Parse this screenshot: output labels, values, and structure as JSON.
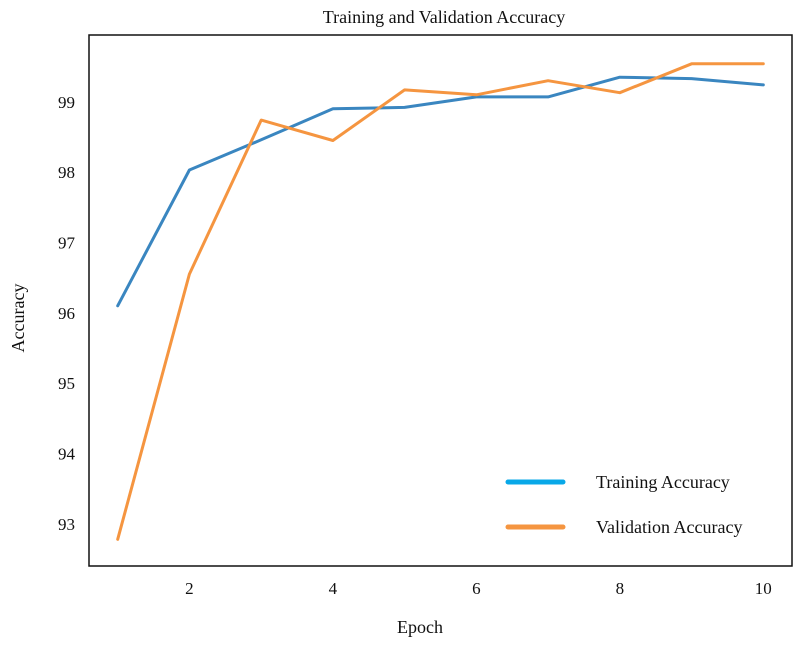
{
  "chart_data": {
    "type": "line",
    "title": "Training and Validation Accuracy",
    "xlabel": "Epoch",
    "ylabel": "Accuracy",
    "xlim": [
      0.6,
      10.4
    ],
    "ylim": [
      92.4,
      99.95
    ],
    "xticks": [
      2,
      4,
      6,
      8,
      10
    ],
    "yticks": [
      93,
      94,
      95,
      96,
      97,
      98,
      99
    ],
    "grid": false,
    "legend_position": "bottom-right",
    "series": [
      {
        "name": "Training Accuracy",
        "color": "#3a86c0",
        "legend_color": "#08a8e8",
        "x": [
          1,
          2,
          3,
          4,
          5,
          6,
          7,
          8,
          9,
          10
        ],
        "y": [
          96.1,
          98.03,
          98.46,
          98.9,
          98.92,
          99.07,
          99.07,
          99.35,
          99.33,
          99.24
        ]
      },
      {
        "name": "Validation Accuracy",
        "color": "#f59540",
        "legend_color": "#f59540",
        "x": [
          1,
          2,
          3,
          4,
          5,
          6,
          7,
          8,
          9,
          10
        ],
        "y": [
          92.78,
          96.55,
          98.74,
          98.45,
          99.17,
          99.1,
          99.3,
          99.13,
          99.54,
          99.54
        ]
      }
    ]
  }
}
